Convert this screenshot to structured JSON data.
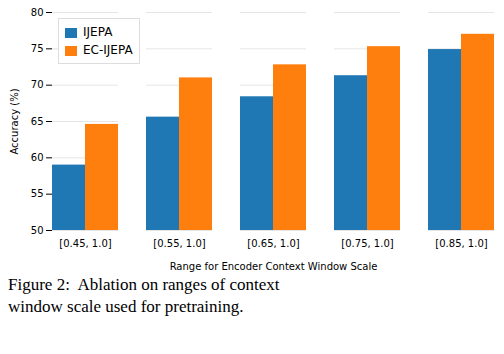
{
  "chart_data": {
    "type": "bar",
    "xlabel": "Range for Encoder Context Window Scale",
    "ylabel": "Accuracy (%)",
    "categories": [
      "[0.45, 1.0]",
      "[0.55, 1.0]",
      "[0.65, 1.0]",
      "[0.75, 1.0]",
      "[0.85, 1.0]"
    ],
    "series": [
      {
        "name": "IJEPA",
        "color": "#1f77b4",
        "values": [
          59.0,
          65.6,
          68.4,
          71.3,
          74.9
        ]
      },
      {
        "name": "EC-IJEPA",
        "color": "#ff7f0e",
        "values": [
          64.6,
          71.0,
          72.8,
          75.3,
          77.0
        ]
      }
    ],
    "ylim": [
      50,
      80
    ],
    "yticks": [
      50,
      55,
      60,
      65,
      70,
      75,
      80
    ],
    "grid": true,
    "legend": "upper left",
    "annotations": [
      "Figure 2:  Ablation on ranges of context",
      "window scale used for pretraining."
    ]
  }
}
